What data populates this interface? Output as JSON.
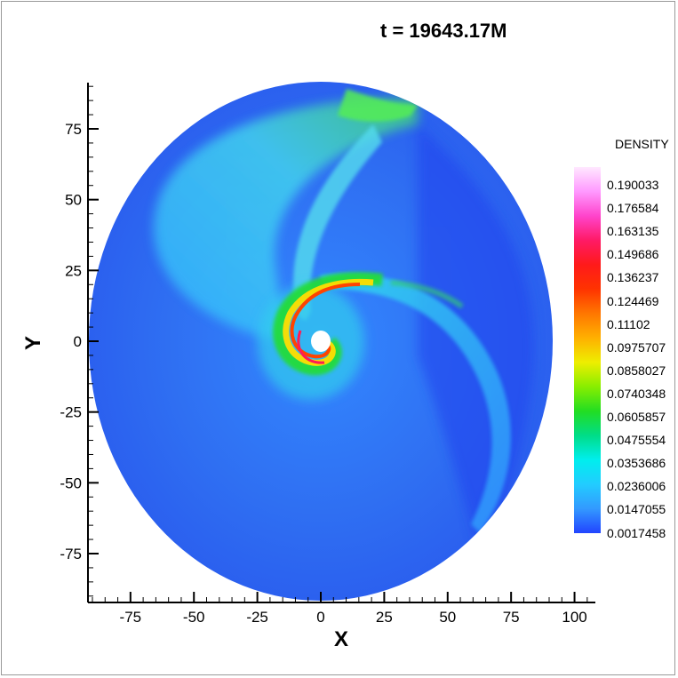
{
  "chart_data": {
    "type": "heatmap",
    "title": "t = 19643.17M",
    "xlabel": "X",
    "ylabel": "Y",
    "xlim": [
      -90,
      100
    ],
    "ylim": [
      -90,
      90
    ],
    "x_ticks": [
      "-75",
      "-50",
      "-25",
      "0",
      "25",
      "50",
      "75",
      "100"
    ],
    "x_tick_values": [
      -75,
      -50,
      -25,
      0,
      25,
      50,
      75,
      100
    ],
    "y_ticks": [
      "75",
      "50",
      "25",
      "0",
      "-25",
      "-50",
      "-75"
    ],
    "y_tick_values": [
      75,
      50,
      25,
      0,
      -25,
      -50,
      -75
    ],
    "colorbar": {
      "title": "DENSITY",
      "labels": [
        "0.190033",
        "0.176584",
        "0.163135",
        "0.149686",
        "0.136237",
        "0.124469",
        "0.11102",
        "0.0975707",
        "0.0858027",
        "0.0740348",
        "0.0605857",
        "0.0475554",
        "0.0353686",
        "0.0236006",
        "0.0147055",
        "0.0017458"
      ],
      "colors": [
        "#ffe8ff",
        "#ff99ff",
        "#ff44cc",
        "#ff1a66",
        "#ff1a1a",
        "#ff3300",
        "#ff7700",
        "#ffb000",
        "#eeee00",
        "#88ee00",
        "#22dd22",
        "#00dd88",
        "#00eeee",
        "#22ccff",
        "#3399ff",
        "#2244ff"
      ]
    },
    "legend_position": "right"
  }
}
